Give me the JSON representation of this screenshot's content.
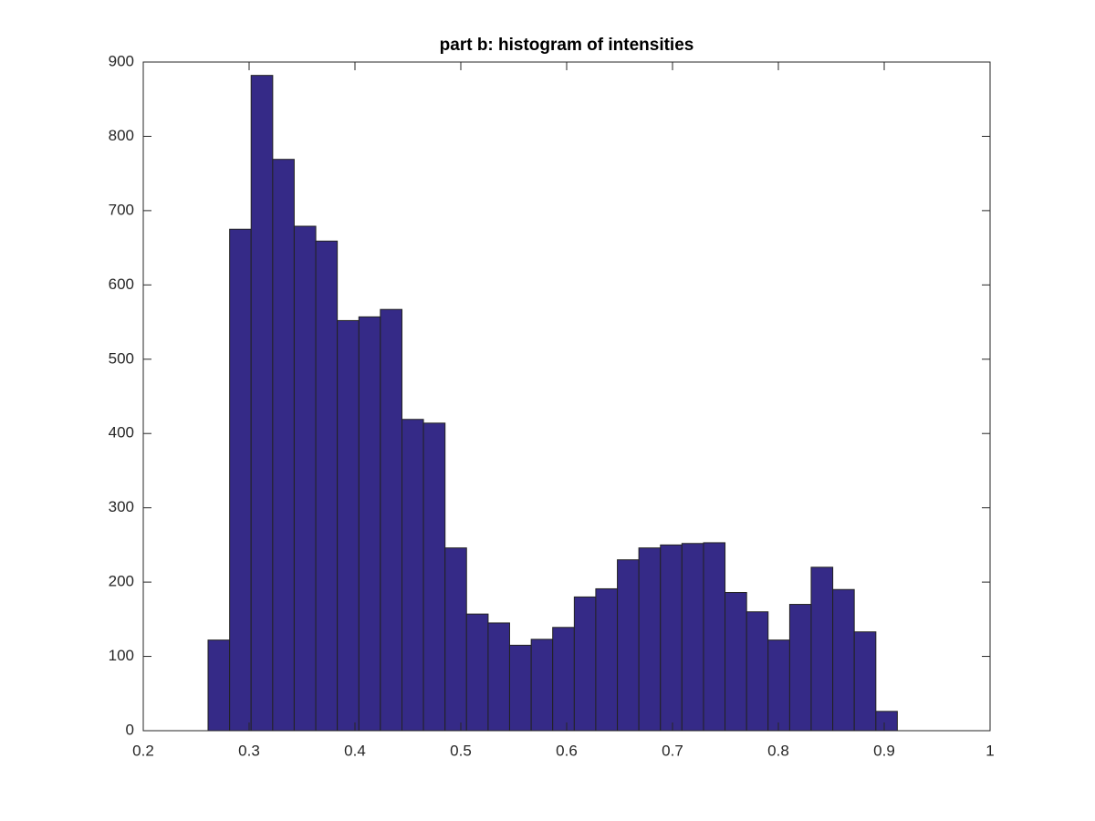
{
  "chart_data": {
    "type": "histogram",
    "title": "part b: histogram of intensities",
    "bins": [
      0.2612,
      0.2816,
      0.3019,
      0.3223,
      0.3426,
      0.363,
      0.3833,
      0.4037,
      0.424,
      0.4444,
      0.4647,
      0.4851,
      0.5054,
      0.5258,
      0.5461,
      0.5665,
      0.5868,
      0.6072,
      0.6275,
      0.6479,
      0.6682,
      0.6886,
      0.7089,
      0.7293,
      0.7496,
      0.77,
      0.7903,
      0.8107,
      0.831,
      0.8514,
      0.8717,
      0.8921,
      0.9124
    ],
    "counts": [
      122,
      675,
      882,
      769,
      679,
      659,
      552,
      557,
      567,
      419,
      414,
      246,
      157,
      145,
      115,
      123,
      139,
      180,
      191,
      230,
      246,
      250,
      252,
      253,
      186,
      160,
      122,
      170,
      220,
      190,
      133,
      26
    ],
    "color": "#352a87",
    "xlim": [
      0.2,
      1
    ],
    "xticks": [
      0.2,
      0.3,
      0.4,
      0.5,
      0.6,
      0.7,
      0.8,
      0.9,
      1
    ],
    "ylim": [
      0,
      900
    ],
    "yticks": [
      0,
      100,
      200,
      300,
      400,
      500,
      600,
      700,
      800,
      900
    ],
    "grid": false
  }
}
